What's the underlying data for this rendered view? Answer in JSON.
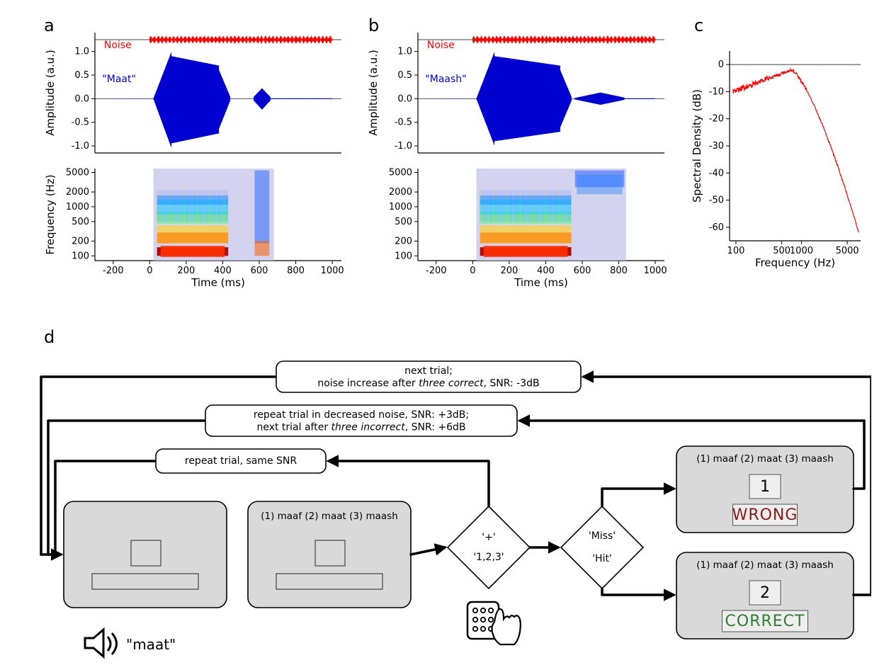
{
  "panel_a": {
    "label": "a",
    "noise_label": "Noise",
    "noise_color": "#ff0000",
    "signal_label": "\"Maat\"",
    "signal_color": "#0000d0",
    "amplitude": {
      "axis_label": "Amplitude (a.u.)",
      "ticks": [
        -1.0,
        -0.5,
        0.0,
        0.5,
        1.0
      ],
      "ylim": [
        -1.15,
        1.4
      ],
      "xlim": [
        -300,
        1050
      ]
    },
    "spectrogram": {
      "y_axis_label": "Frequency (Hz)",
      "x_axis_label": "Time (ms)",
      "yticks": [
        100,
        200,
        500,
        1000,
        2000,
        5000
      ],
      "xticks": [
        -200,
        0,
        200,
        400,
        600,
        800,
        1000
      ],
      "xlim": [
        -300,
        1050
      ],
      "ylim": [
        80,
        6000
      ]
    }
  },
  "panel_b": {
    "label": "b",
    "noise_label": "Noise",
    "noise_color": "#ff0000",
    "signal_label": "\"Maash\"",
    "signal_color": "#0000d0",
    "amplitude": {
      "axis_label": "",
      "ticks": [
        -1.0,
        -0.5,
        0.0,
        0.5,
        1.0
      ],
      "ylim": [
        -1.15,
        1.4
      ],
      "xlim": [
        -300,
        1050
      ]
    },
    "spectrogram": {
      "x_axis_label": "Time (ms)",
      "yticks": [
        100,
        200,
        500,
        1000,
        2000,
        5000
      ],
      "xticks": [
        -200,
        0,
        200,
        400,
        600,
        800,
        1000
      ],
      "xlim": [
        -300,
        1050
      ],
      "ylim": [
        80,
        6000
      ]
    }
  },
  "panel_c": {
    "label": "c",
    "y_axis_label": "Spectral Density (dB)",
    "x_axis_label": "Frequency (Hz)",
    "line_color": "#ff0000",
    "yticks": [
      -60,
      -50,
      -40,
      -30,
      -20,
      -10,
      0
    ],
    "xticks": [
      100,
      500,
      1000,
      5000
    ],
    "xtick_labels": [
      "100",
      "500",
      "1000",
      "5000"
    ],
    "ylim": [
      -65,
      5
    ],
    "xlim": [
      80,
      8000
    ]
  },
  "panel_d": {
    "label": "d",
    "flow_boxes": {
      "top": "next trial;\nnoise increase after <i>three correct</i>, SNR: -3dB",
      "mid": "repeat trial in decreased noise, SNR: +3dB;\nnext trial after <i>three incorrect</i>, SNR: +6dB",
      "bot": "repeat trial, same SNR"
    },
    "diamond1": {
      "top": "'+'",
      "bot": "'1,2,3'"
    },
    "diamond2": {
      "top": "'Miss'",
      "bot": "'Hit'"
    },
    "options_text": "(1) maaf  (2) maat  (3) maash",
    "wrong": {
      "num": "1",
      "word": "WRONG",
      "color": "#8b1a1a"
    },
    "correct": {
      "num": "2",
      "word": "CORRECT",
      "color": "#2e7d32"
    },
    "speaker_text": "\"maat\"",
    "font_size": 15,
    "stroke_width": 3.5,
    "box_fill": "#d9d9d9",
    "box_stroke": "#000000"
  }
}
